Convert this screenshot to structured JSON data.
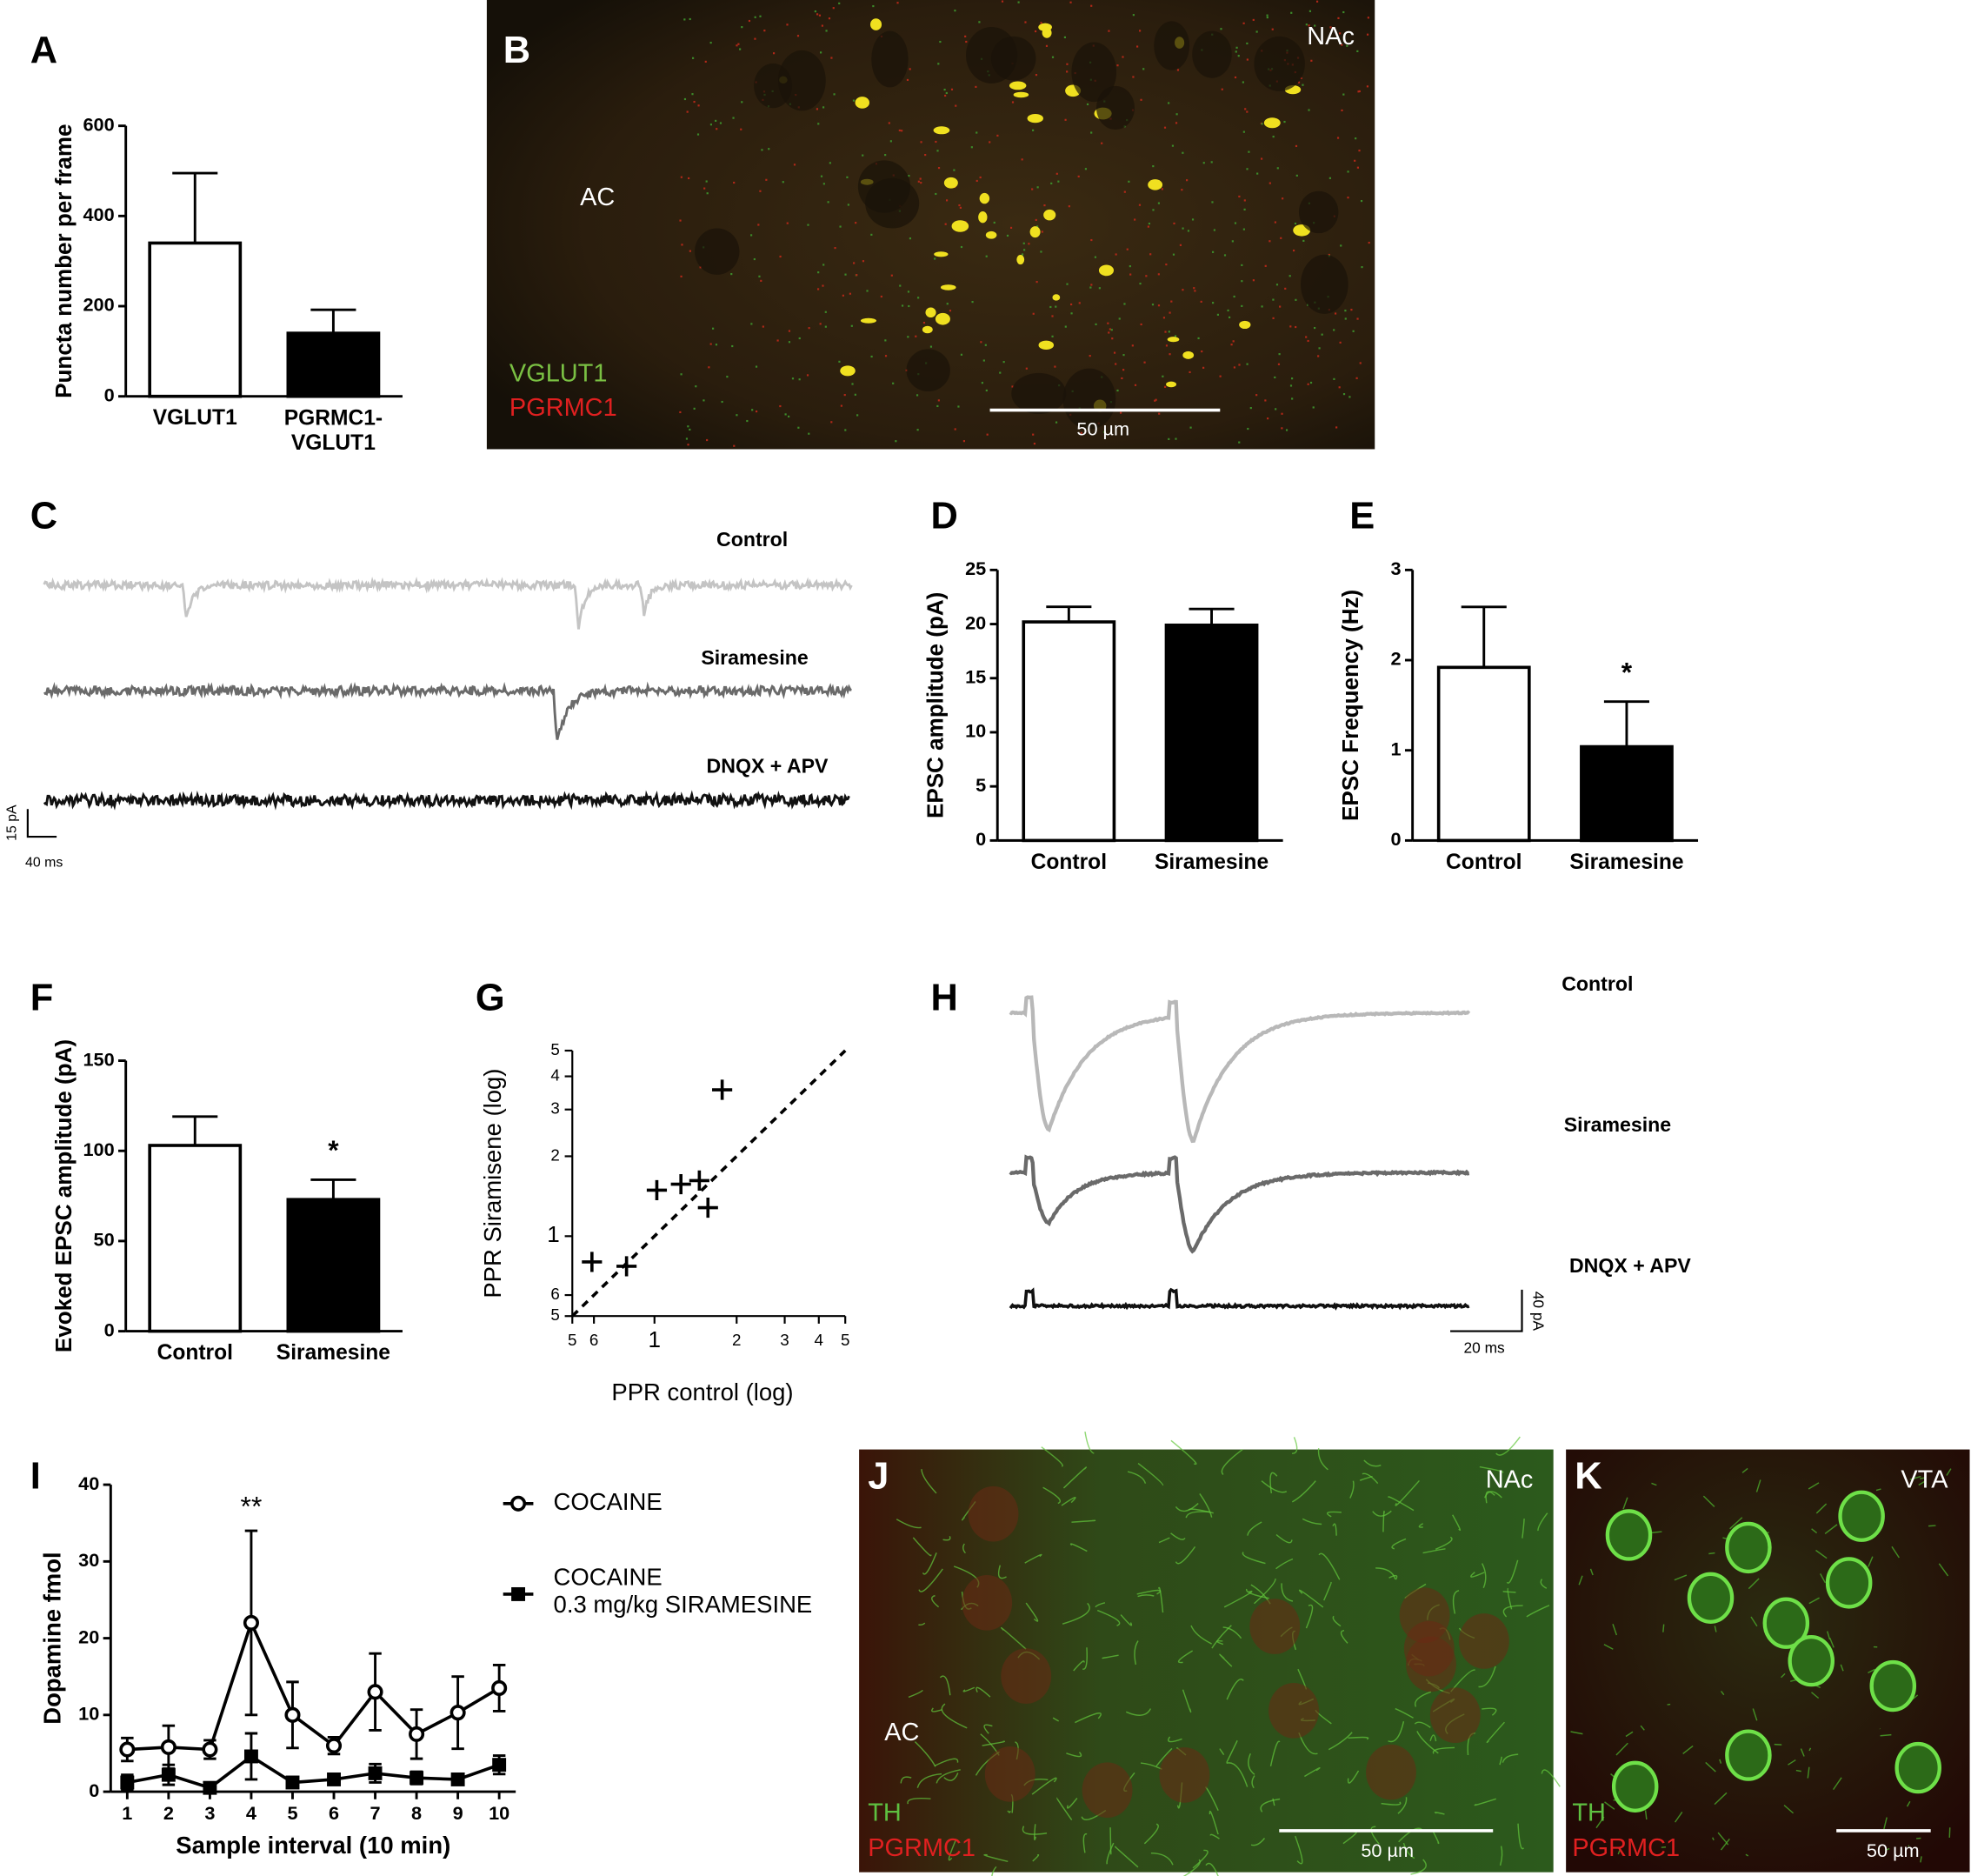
{
  "panels": {
    "letters": [
      "A",
      "B",
      "C",
      "D",
      "E",
      "F",
      "G",
      "H",
      "I",
      "J",
      "K"
    ]
  },
  "images": [
    {
      "region": "NAc",
      "other_region": "AC",
      "channels": [
        "VGLUT1",
        "PGRMC1"
      ],
      "scale_bar": "50 µm"
    },
    {
      "region": "NAc",
      "other_region": "AC",
      "channels": [
        "TH",
        "PGRMC1"
      ],
      "scale_bar": "50 µm"
    },
    {
      "region": "VTA",
      "channels": [
        "TH",
        "PGRMC1"
      ],
      "scale_bar": "50 µm"
    }
  ],
  "traces": [
    {
      "conditions": [
        "Control",
        "Siramesine",
        "DNQX + APV"
      ],
      "scale_y": "15 pA",
      "scale_x": "40 ms"
    },
    {
      "conditions": [
        "Control",
        "Siramesine",
        "DNQX + APV"
      ],
      "scale_y": "40 pA",
      "scale_x": "20 ms"
    }
  ],
  "chart_data": [
    {
      "type": "bar",
      "ylabel": "Puncta number per frame",
      "categories": [
        "VGLUT1",
        "PGRMC1-\nVGLUT1"
      ],
      "values": [
        340,
        140
      ],
      "errors": [
        155,
        52
      ],
      "colors": [
        "#ffffff",
        "#000000"
      ],
      "ylim": [
        0,
        600
      ],
      "yticks": [
        0,
        200,
        400,
        600
      ]
    },
    {
      "type": "bar",
      "ylabel": "EPSC amplitude (pA)",
      "categories": [
        "Control",
        "Siramesine"
      ],
      "values": [
        20.2,
        19.9
      ],
      "errors": [
        1.4,
        1.5
      ],
      "colors": [
        "#ffffff",
        "#000000"
      ],
      "ylim": [
        0,
        25
      ],
      "yticks": [
        0,
        5,
        10,
        15,
        20,
        25
      ]
    },
    {
      "type": "bar",
      "ylabel": "EPSC Frequency (Hz)",
      "categories": [
        "Control",
        "Siramesine"
      ],
      "values": [
        1.92,
        1.04
      ],
      "errors": [
        0.67,
        0.5
      ],
      "colors": [
        "#ffffff",
        "#000000"
      ],
      "ylim": [
        0,
        3
      ],
      "yticks": [
        0,
        1,
        2,
        3
      ],
      "annotations": [
        {
          "text": "*",
          "x": 1
        }
      ]
    },
    {
      "type": "bar",
      "ylabel": "Evoked EPSC amplitude (pA)",
      "categories": [
        "Control",
        "Siramesine"
      ],
      "values": [
        103,
        73
      ],
      "errors": [
        16,
        11
      ],
      "colors": [
        "#ffffff",
        "#000000"
      ],
      "ylim": [
        0,
        150
      ],
      "yticks": [
        0,
        50,
        100,
        150
      ],
      "annotations": [
        {
          "text": "*",
          "x": 1
        }
      ]
    },
    {
      "type": "scatter",
      "xlabel": "PPR control (log)",
      "ylabel": "PPR Siramisene (log)",
      "log": true,
      "marker": "+",
      "color": "#000000",
      "x": [
        0.59,
        0.79,
        1.02,
        1.25,
        1.46,
        1.57,
        1.77
      ],
      "y": [
        0.8,
        0.77,
        1.49,
        1.57,
        1.62,
        1.28,
        3.56
      ],
      "xlim": [
        0.5,
        5
      ],
      "ylim": [
        0.5,
        5
      ],
      "xticks": [
        {
          "value": 0.5,
          "label": "5"
        },
        {
          "value": 0.6,
          "label": "6"
        },
        1,
        2,
        3,
        4,
        5
      ],
      "yticks": [
        {
          "value": 0.5,
          "label": "5"
        },
        {
          "value": 0.6,
          "label": "6"
        },
        1,
        2,
        3,
        4,
        5
      ]
    },
    {
      "type": "line",
      "xlabel": "Sample interval (10 min)",
      "ylabel": "Dopamine fmol",
      "x": [
        1,
        2,
        3,
        4,
        5,
        6,
        7,
        8,
        9,
        10
      ],
      "xlim": [
        0.6,
        10.4
      ],
      "xticks": [
        1,
        2,
        3,
        4,
        5,
        6,
        7,
        8,
        9,
        10
      ],
      "ylim": [
        0,
        40
      ],
      "yticks": [
        0,
        10,
        20,
        30,
        40
      ],
      "series": [
        {
          "name": "COCAINE",
          "marker": "circle",
          "color": "#000000",
          "values": [
            5.5,
            5.8,
            5.5,
            22,
            10,
            6,
            13,
            7.5,
            10.3,
            13.5
          ],
          "errors": [
            1.5,
            2.8,
            1.2,
            12,
            4.3,
            1.1,
            5,
            3.2,
            4.7,
            3
          ]
        },
        {
          "name": "COCAINE\n0.3 mg/kg SIRAMESINE",
          "marker": "square",
          "color": "#000000",
          "values": [
            1.2,
            2.2,
            0.5,
            4.6,
            1.2,
            1.6,
            2.4,
            1.8,
            1.6,
            3.5
          ],
          "errors": [
            1,
            1.3,
            0.4,
            3,
            0.5,
            0.5,
            1.2,
            0.8,
            0.6,
            1.2
          ]
        }
      ],
      "annotations": [
        {
          "text": "**",
          "x": 4
        }
      ]
    }
  ]
}
